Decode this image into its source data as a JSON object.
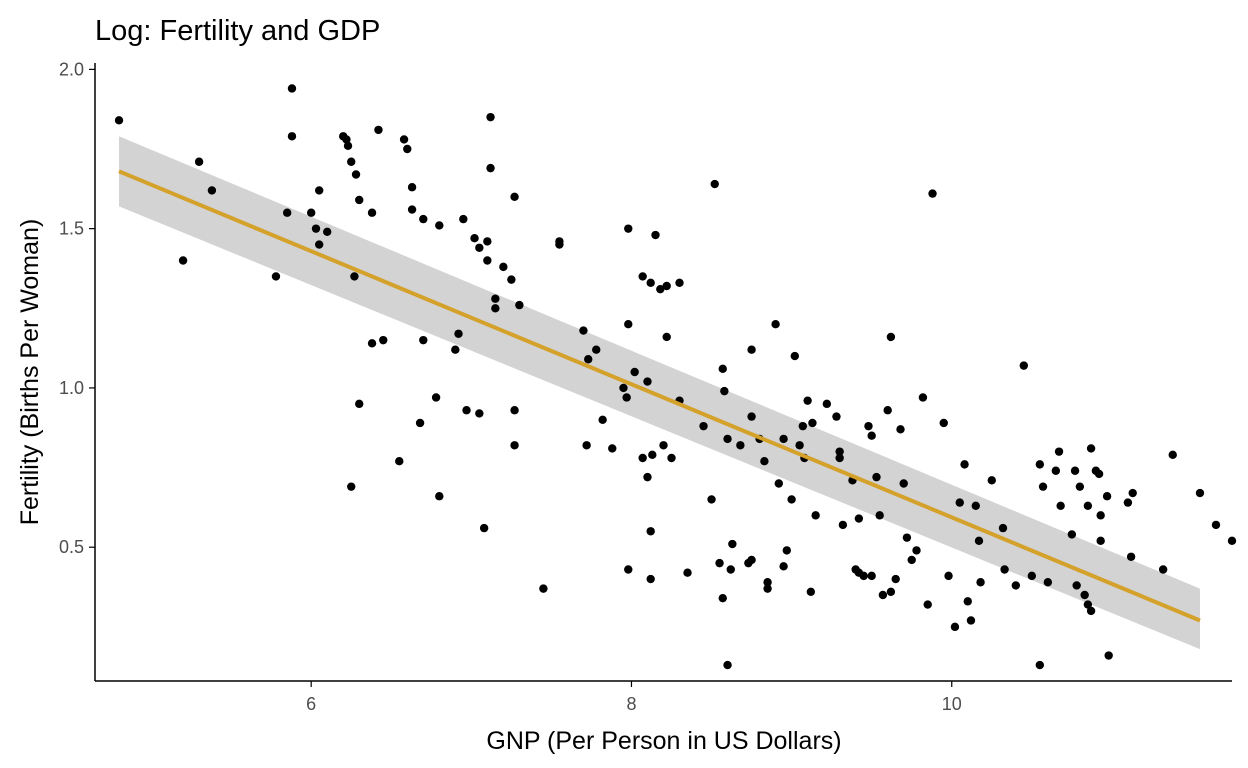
{
  "chart_data": {
    "type": "scatter",
    "title": "Log: Fertility and GDP",
    "xlabel": "GNP (Per Person in US Dollars)",
    "ylabel": "Fertility (Births Per Woman)",
    "xlim": [
      4.65,
      11.75
    ],
    "ylim": [
      0.08,
      2.02
    ],
    "x_ticks": [
      6,
      8,
      10
    ],
    "x_tick_labels": [
      "6",
      "8",
      "10"
    ],
    "y_ticks": [
      0.5,
      1.0,
      1.5,
      2.0
    ],
    "y_tick_labels": [
      "0.5",
      "1.0",
      "1.5",
      "2.0"
    ],
    "grid": false,
    "legend": "none",
    "colors": {
      "points": "#000000",
      "fit_line": "#d4a12a",
      "confidence_band": "#d3d3d3",
      "axis": "#000000"
    },
    "regression": {
      "x": [
        4.8,
        11.55
      ],
      "y": [
        1.68,
        0.27
      ],
      "ci_lower": [
        1.57,
        0.18
      ],
      "ci_upper": [
        1.79,
        0.37
      ]
    },
    "points": [
      [
        4.8,
        1.84
      ],
      [
        5.2,
        1.4
      ],
      [
        5.3,
        1.71
      ],
      [
        5.38,
        1.62
      ],
      [
        5.78,
        1.35
      ],
      [
        5.85,
        1.55
      ],
      [
        5.88,
        1.94
      ],
      [
        5.88,
        1.79
      ],
      [
        6.0,
        1.55
      ],
      [
        6.03,
        1.5
      ],
      [
        6.05,
        1.62
      ],
      [
        6.05,
        1.45
      ],
      [
        6.1,
        1.49
      ],
      [
        6.2,
        1.79
      ],
      [
        6.22,
        1.78
      ],
      [
        6.23,
        1.76
      ],
      [
        6.25,
        1.71
      ],
      [
        6.25,
        0.69
      ],
      [
        6.27,
        1.35
      ],
      [
        6.28,
        1.67
      ],
      [
        6.3,
        0.95
      ],
      [
        6.3,
        1.59
      ],
      [
        6.38,
        1.14
      ],
      [
        6.38,
        1.55
      ],
      [
        6.42,
        1.81
      ],
      [
        6.45,
        1.15
      ],
      [
        6.55,
        0.77
      ],
      [
        6.58,
        1.78
      ],
      [
        6.6,
        1.75
      ],
      [
        6.63,
        1.63
      ],
      [
        6.63,
        1.56
      ],
      [
        6.68,
        0.89
      ],
      [
        6.7,
        1.53
      ],
      [
        6.7,
        1.15
      ],
      [
        6.78,
        0.97
      ],
      [
        6.8,
        1.51
      ],
      [
        6.8,
        0.66
      ],
      [
        6.9,
        1.12
      ],
      [
        6.92,
        1.17
      ],
      [
        6.95,
        1.53
      ],
      [
        6.97,
        0.93
      ],
      [
        7.02,
        1.47
      ],
      [
        7.05,
        1.44
      ],
      [
        7.05,
        0.92
      ],
      [
        7.08,
        0.56
      ],
      [
        7.1,
        1.46
      ],
      [
        7.1,
        1.4
      ],
      [
        7.12,
        1.69
      ],
      [
        7.12,
        1.85
      ],
      [
        7.15,
        1.25
      ],
      [
        7.15,
        1.28
      ],
      [
        7.2,
        1.38
      ],
      [
        7.25,
        1.34
      ],
      [
        7.27,
        1.6
      ],
      [
        7.27,
        0.93
      ],
      [
        7.27,
        0.82
      ],
      [
        7.3,
        1.26
      ],
      [
        7.45,
        0.37
      ],
      [
        7.55,
        1.46
      ],
      [
        7.55,
        1.45
      ],
      [
        7.7,
        1.18
      ],
      [
        7.72,
        0.82
      ],
      [
        7.73,
        1.09
      ],
      [
        7.78,
        1.12
      ],
      [
        7.82,
        0.9
      ],
      [
        7.88,
        0.81
      ],
      [
        7.95,
        1.0
      ],
      [
        7.97,
        0.97
      ],
      [
        7.98,
        1.2
      ],
      [
        7.98,
        1.5
      ],
      [
        7.98,
        0.43
      ],
      [
        8.02,
        1.05
      ],
      [
        8.07,
        1.35
      ],
      [
        8.07,
        0.78
      ],
      [
        8.1,
        1.02
      ],
      [
        8.1,
        0.72
      ],
      [
        8.12,
        1.33
      ],
      [
        8.12,
        0.55
      ],
      [
        8.12,
        0.4
      ],
      [
        8.13,
        0.79
      ],
      [
        8.15,
        1.48
      ],
      [
        8.18,
        1.31
      ],
      [
        8.2,
        0.82
      ],
      [
        8.22,
        1.16
      ],
      [
        8.22,
        1.32
      ],
      [
        8.25,
        0.78
      ],
      [
        8.3,
        1.33
      ],
      [
        8.3,
        0.96
      ],
      [
        8.35,
        0.42
      ],
      [
        8.45,
        0.88
      ],
      [
        8.5,
        0.65
      ],
      [
        8.52,
        1.64
      ],
      [
        8.55,
        0.45
      ],
      [
        8.57,
        1.06
      ],
      [
        8.57,
        0.34
      ],
      [
        8.58,
        0.99
      ],
      [
        8.6,
        0.84
      ],
      [
        8.6,
        0.13
      ],
      [
        8.62,
        0.43
      ],
      [
        8.63,
        0.51
      ],
      [
        8.68,
        0.82
      ],
      [
        8.73,
        0.45
      ],
      [
        8.75,
        1.12
      ],
      [
        8.75,
        0.91
      ],
      [
        8.75,
        0.46
      ],
      [
        8.8,
        0.84
      ],
      [
        8.83,
        0.77
      ],
      [
        8.85,
        0.39
      ],
      [
        8.85,
        0.37
      ],
      [
        8.9,
        1.2
      ],
      [
        8.92,
        0.7
      ],
      [
        8.95,
        0.44
      ],
      [
        8.95,
        0.84
      ],
      [
        8.97,
        0.49
      ],
      [
        9.0,
        0.65
      ],
      [
        9.02,
        1.1
      ],
      [
        9.05,
        0.82
      ],
      [
        9.07,
        0.88
      ],
      [
        9.08,
        0.78
      ],
      [
        9.1,
        0.96
      ],
      [
        9.12,
        0.36
      ],
      [
        9.13,
        0.89
      ],
      [
        9.15,
        0.6
      ],
      [
        9.22,
        0.95
      ],
      [
        9.28,
        0.91
      ],
      [
        9.3,
        0.8
      ],
      [
        9.3,
        0.78
      ],
      [
        9.32,
        0.57
      ],
      [
        9.38,
        0.71
      ],
      [
        9.4,
        0.43
      ],
      [
        9.42,
        0.42
      ],
      [
        9.42,
        0.59
      ],
      [
        9.45,
        0.41
      ],
      [
        9.48,
        0.88
      ],
      [
        9.5,
        0.85
      ],
      [
        9.5,
        0.41
      ],
      [
        9.53,
        0.72
      ],
      [
        9.55,
        0.6
      ],
      [
        9.57,
        0.35
      ],
      [
        9.6,
        0.93
      ],
      [
        9.62,
        1.16
      ],
      [
        9.62,
        0.36
      ],
      [
        9.65,
        0.4
      ],
      [
        9.68,
        0.87
      ],
      [
        9.7,
        0.7
      ],
      [
        9.72,
        0.53
      ],
      [
        9.75,
        0.46
      ],
      [
        9.78,
        0.49
      ],
      [
        9.82,
        0.97
      ],
      [
        9.85,
        0.32
      ],
      [
        9.88,
        1.61
      ],
      [
        9.95,
        0.89
      ],
      [
        9.98,
        0.41
      ],
      [
        10.02,
        0.25
      ],
      [
        10.05,
        0.64
      ],
      [
        10.08,
        0.76
      ],
      [
        10.1,
        0.33
      ],
      [
        10.12,
        0.27
      ],
      [
        10.15,
        0.63
      ],
      [
        10.17,
        0.52
      ],
      [
        10.18,
        0.39
      ],
      [
        10.25,
        0.71
      ],
      [
        10.32,
        0.56
      ],
      [
        10.33,
        0.43
      ],
      [
        10.4,
        0.38
      ],
      [
        10.45,
        1.07
      ],
      [
        10.5,
        0.41
      ],
      [
        10.55,
        0.76
      ],
      [
        10.55,
        0.13
      ],
      [
        10.57,
        0.69
      ],
      [
        10.6,
        0.39
      ],
      [
        10.65,
        0.74
      ],
      [
        10.67,
        0.8
      ],
      [
        10.68,
        0.63
      ],
      [
        10.75,
        0.54
      ],
      [
        10.77,
        0.74
      ],
      [
        10.78,
        0.38
      ],
      [
        10.8,
        0.69
      ],
      [
        10.83,
        0.35
      ],
      [
        10.85,
        0.32
      ],
      [
        10.85,
        0.63
      ],
      [
        10.87,
        0.3
      ],
      [
        10.87,
        0.81
      ],
      [
        10.9,
        0.74
      ],
      [
        10.92,
        0.73
      ],
      [
        10.93,
        0.52
      ],
      [
        10.93,
        0.6
      ],
      [
        10.97,
        0.66
      ],
      [
        10.98,
        0.16
      ],
      [
        11.1,
        0.64
      ],
      [
        11.12,
        0.47
      ],
      [
        11.13,
        0.67
      ],
      [
        11.32,
        0.43
      ],
      [
        11.38,
        0.79
      ],
      [
        11.55,
        0.67
      ],
      [
        11.65,
        0.57
      ],
      [
        11.75,
        0.52
      ]
    ]
  }
}
